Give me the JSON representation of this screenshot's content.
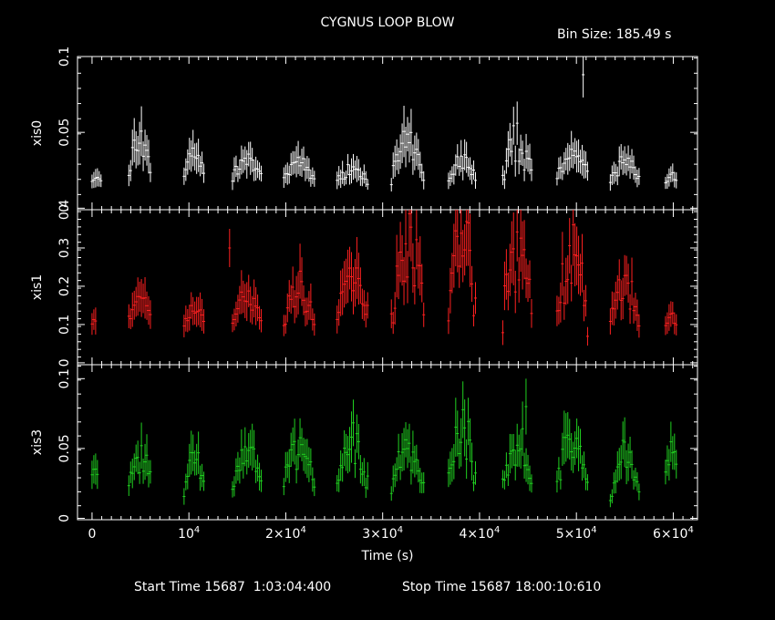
{
  "header": {
    "title": "CYGNUS LOOP BLOW",
    "bin_size": "Bin Size: 185.49 s"
  },
  "footer": {
    "start_label": "Start Time 15687  1:03:04:400",
    "stop_label": "Stop Time 15687 18:00:10:610"
  },
  "colors": {
    "background": "#000000",
    "axes": "#ffffff",
    "xis0": "#ffffff",
    "xis1": "#ff2020",
    "xis3": "#20d020"
  },
  "chart_data": {
    "type": "scatter",
    "x_axis": {
      "label": "Time (s)",
      "range": [
        -1500,
        62500
      ],
      "ticks": [
        {
          "value": 0,
          "label": "0"
        },
        {
          "value": 10000,
          "label": "10^4"
        },
        {
          "value": 20000,
          "label": "2×10^4"
        },
        {
          "value": 30000,
          "label": "3×10^4"
        },
        {
          "value": 40000,
          "label": "4×10^4"
        },
        {
          "value": 50000,
          "label": "5×10^4"
        },
        {
          "value": 60000,
          "label": "6×10^4"
        }
      ]
    },
    "panels": [
      {
        "name": "xis0",
        "ylabel": "xis0",
        "color": "#ffffff",
        "ylim": [
          -0.001,
          0.1
        ],
        "yticks": [
          {
            "value": 0,
            "label": "0"
          },
          {
            "value": 0.05,
            "label": "0.05"
          },
          {
            "value": 0.1,
            "label": "0.1"
          }
        ],
        "outlier": {
          "x": 50700,
          "y": 0.088,
          "err": 0.015
        },
        "segments": [
          {
            "start": 0,
            "end": 1000,
            "base": 0.017,
            "amp": 0.003
          },
          {
            "start": 3800,
            "end": 6200,
            "base": 0.022,
            "amp": 0.025
          },
          {
            "start": 9500,
            "end": 11700,
            "base": 0.022,
            "amp": 0.014
          },
          {
            "start": 14500,
            "end": 17500,
            "base": 0.02,
            "amp": 0.012
          },
          {
            "start": 19800,
            "end": 23000,
            "base": 0.018,
            "amp": 0.012
          },
          {
            "start": 25300,
            "end": 28600,
            "base": 0.017,
            "amp": 0.01
          },
          {
            "start": 30900,
            "end": 34300,
            "base": 0.02,
            "amp": 0.022
          },
          {
            "start": 36800,
            "end": 39700,
            "base": 0.019,
            "amp": 0.012
          },
          {
            "start": 42400,
            "end": 45500,
            "base": 0.018,
            "amp": 0.025
          },
          {
            "start": 48000,
            "end": 51200,
            "base": 0.022,
            "amp": 0.015
          },
          {
            "start": 53500,
            "end": 56600,
            "base": 0.018,
            "amp": 0.012
          },
          {
            "start": 59200,
            "end": 60400,
            "base": 0.017,
            "amp": 0.006
          }
        ]
      },
      {
        "name": "xis1",
        "ylabel": "xis1",
        "color": "#ff2020",
        "ylim": [
          -0.005,
          0.4
        ],
        "yticks": [
          {
            "value": 0,
            "label": "0"
          },
          {
            "value": 0.1,
            "label": "0.1"
          },
          {
            "value": 0.2,
            "label": "0.2"
          },
          {
            "value": 0.3,
            "label": "0.3"
          },
          {
            "value": 0.4,
            "label": "0.4"
          }
        ],
        "outlier": {
          "x": 14200,
          "y": 0.3,
          "err": 0.05
        },
        "segments": [
          {
            "start": 0,
            "end": 500,
            "base": 0.1,
            "amp": 0.01
          },
          {
            "start": 3800,
            "end": 6200,
            "base": 0.11,
            "amp": 0.05
          },
          {
            "start": 9500,
            "end": 11700,
            "base": 0.1,
            "amp": 0.04
          },
          {
            "start": 14500,
            "end": 17500,
            "base": 0.11,
            "amp": 0.06
          },
          {
            "start": 19800,
            "end": 23000,
            "base": 0.1,
            "amp": 0.1
          },
          {
            "start": 25300,
            "end": 28600,
            "base": 0.11,
            "amp": 0.12
          },
          {
            "start": 30900,
            "end": 34300,
            "base": 0.12,
            "amp": 0.22
          },
          {
            "start": 36800,
            "end": 39700,
            "base": 0.12,
            "amp": 0.22
          },
          {
            "start": 42400,
            "end": 45500,
            "base": 0.12,
            "amp": 0.18
          },
          {
            "start": 48000,
            "end": 51200,
            "base": 0.1,
            "amp": 0.18
          },
          {
            "start": 53500,
            "end": 56600,
            "base": 0.1,
            "amp": 0.1
          },
          {
            "start": 59200,
            "end": 60400,
            "base": 0.09,
            "amp": 0.03
          }
        ]
      },
      {
        "name": "xis3",
        "ylabel": "xis3",
        "color": "#20d020",
        "ylim": [
          -0.001,
          0.11
        ],
        "yticks": [
          {
            "value": 0,
            "label": "0"
          },
          {
            "value": 0.05,
            "label": "0.05"
          },
          {
            "value": 0.1,
            "label": "0.1"
          }
        ],
        "outlier": {
          "x": 44800,
          "y": 0.08,
          "err": 0.02
        },
        "segments": [
          {
            "start": 0,
            "end": 600,
            "base": 0.03,
            "amp": 0.005
          },
          {
            "start": 3800,
            "end": 6200,
            "base": 0.02,
            "amp": 0.028
          },
          {
            "start": 9500,
            "end": 11700,
            "base": 0.02,
            "amp": 0.025
          },
          {
            "start": 14500,
            "end": 17500,
            "base": 0.022,
            "amp": 0.025
          },
          {
            "start": 19800,
            "end": 23000,
            "base": 0.025,
            "amp": 0.025
          },
          {
            "start": 25300,
            "end": 28600,
            "base": 0.022,
            "amp": 0.03
          },
          {
            "start": 30900,
            "end": 34300,
            "base": 0.022,
            "amp": 0.028
          },
          {
            "start": 36800,
            "end": 39700,
            "base": 0.025,
            "amp": 0.035
          },
          {
            "start": 42400,
            "end": 45500,
            "base": 0.025,
            "amp": 0.03
          },
          {
            "start": 48000,
            "end": 51200,
            "base": 0.025,
            "amp": 0.03
          },
          {
            "start": 53500,
            "end": 56600,
            "base": 0.018,
            "amp": 0.025
          },
          {
            "start": 59200,
            "end": 60400,
            "base": 0.03,
            "amp": 0.02
          }
        ]
      }
    ]
  }
}
